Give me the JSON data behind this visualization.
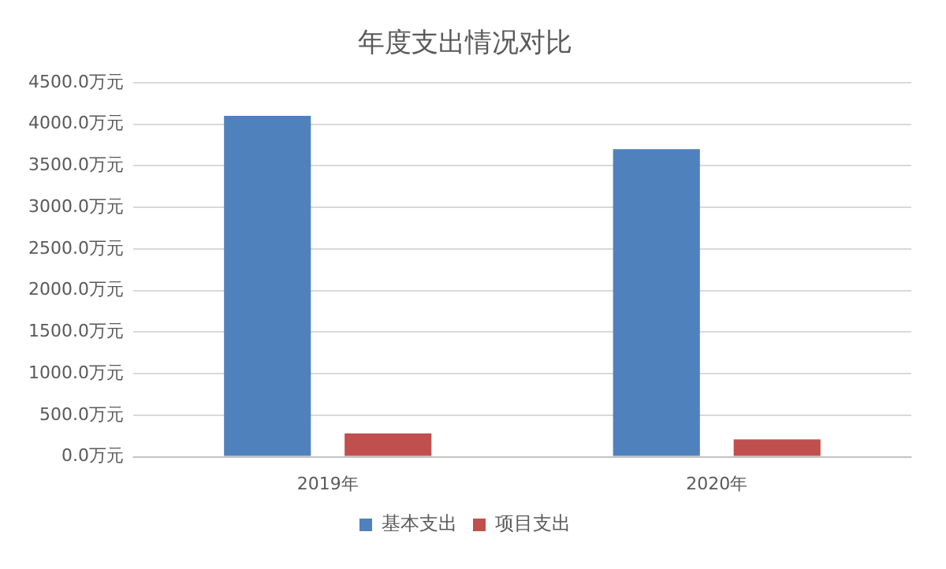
{
  "chart_data": {
    "type": "bar",
    "title": "年度支出情况对比",
    "categories": [
      "2019年",
      "2020年"
    ],
    "series": [
      {
        "name": "基本支出",
        "color": "#4f81bd",
        "values": [
          4100,
          3700
        ]
      },
      {
        "name": "项目支出",
        "color": "#c0504d",
        "values": [
          280,
          210
        ]
      }
    ],
    "ylim": [
      0,
      4500
    ],
    "yticks": [
      {
        "value": 0,
        "label": "0.0万元"
      },
      {
        "value": 500,
        "label": "500.0万元"
      },
      {
        "value": 1000,
        "label": "1000.0万元"
      },
      {
        "value": 1500,
        "label": "1500.0万元"
      },
      {
        "value": 2000,
        "label": "2000.0万元"
      },
      {
        "value": 2500,
        "label": "2500.0万元"
      },
      {
        "value": 3000,
        "label": "3000.0万元"
      },
      {
        "value": 3500,
        "label": "3500.0万元"
      },
      {
        "value": 4000,
        "label": "4000.0万元"
      },
      {
        "value": 4500,
        "label": "4500.0万元"
      }
    ],
    "grid": "y",
    "legend": "bottom"
  }
}
